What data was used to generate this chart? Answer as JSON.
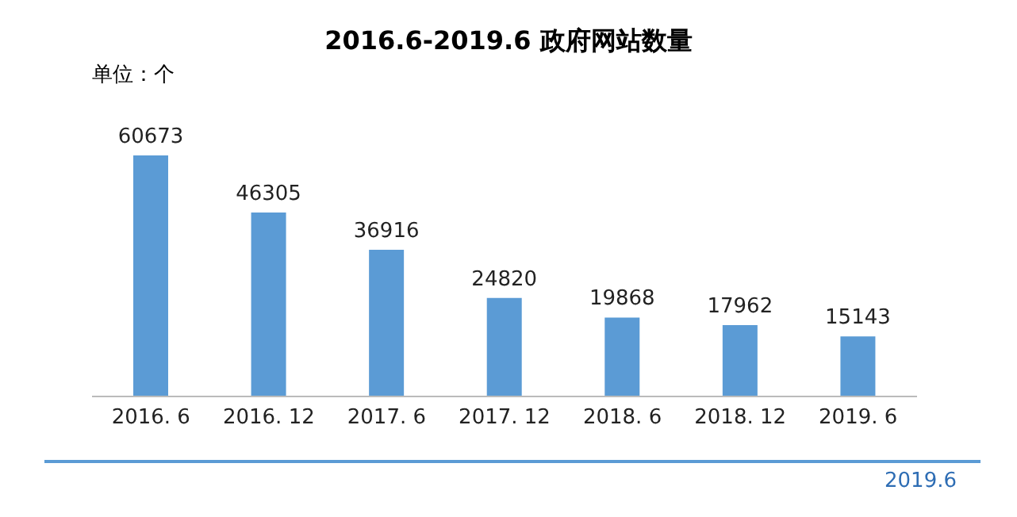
{
  "chart_data": {
    "type": "bar",
    "title": "2016.6-2019.6 政府网站数量",
    "subtitle": "单位：个",
    "categories": [
      "2016. 6",
      "2016. 12",
      "2017. 6",
      "2017. 12",
      "2018. 6",
      "2018. 12",
      "2019. 6"
    ],
    "values": [
      60673,
      46305,
      36916,
      24820,
      19868,
      17962,
      15143
    ],
    "color": "#5b9bd5",
    "data_labels": true,
    "annotations": [
      "2019.6"
    ]
  }
}
